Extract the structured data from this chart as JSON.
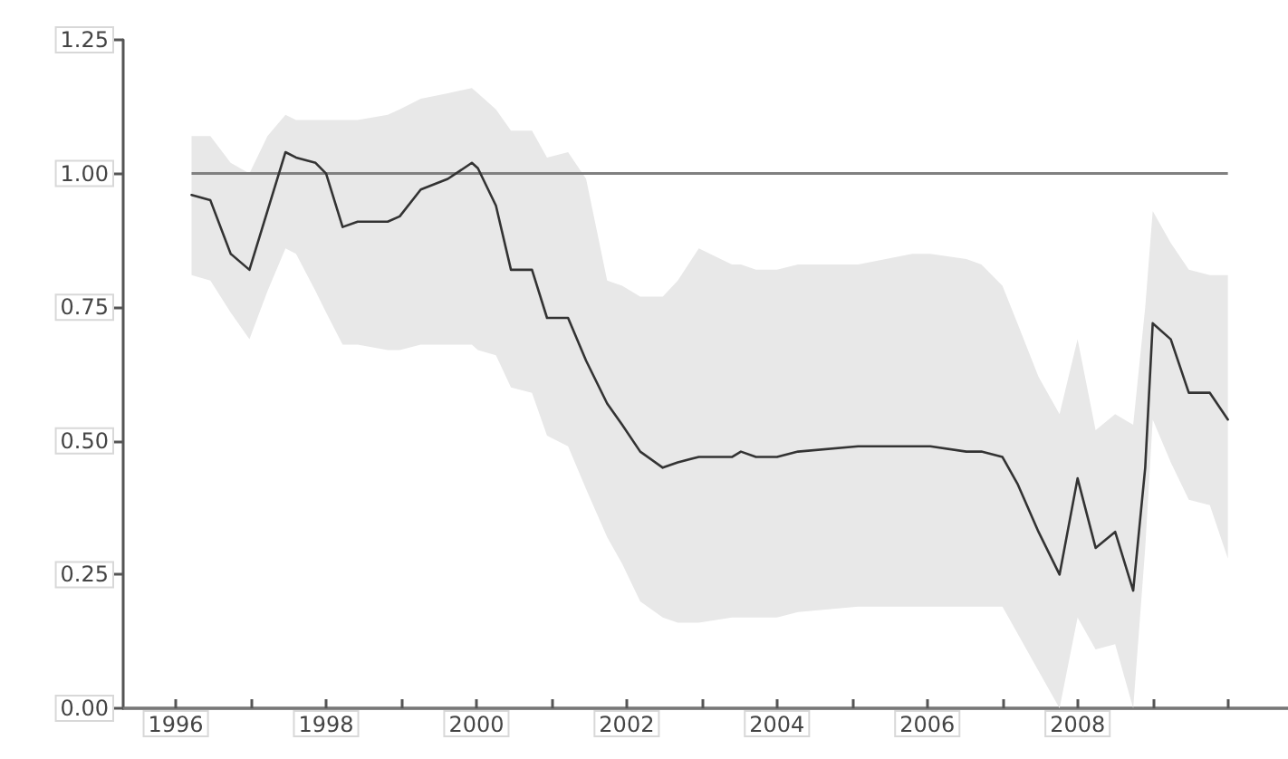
{
  "chart_data": {
    "type": "line",
    "x": [
      1996.21,
      1996.46,
      1996.73,
      1996.98,
      1997.22,
      1997.46,
      1997.6,
      1997.86,
      1998.0,
      1998.22,
      1998.42,
      1998.82,
      1998.98,
      1999.26,
      1999.62,
      1999.94,
      2000.02,
      2000.26,
      2000.46,
      2000.74,
      2000.94,
      2001.22,
      2001.46,
      2001.74,
      2001.94,
      2002.18,
      2002.48,
      2002.68,
      2002.96,
      2003.4,
      2003.52,
      2003.72,
      2004.0,
      2004.28,
      2005.08,
      2005.8,
      2006.04,
      2006.52,
      2006.72,
      2007.0,
      2007.2,
      2007.48,
      2007.76,
      2008.0,
      2008.24,
      2008.5,
      2008.74,
      2008.9,
      2009.0,
      2009.24,
      2009.48,
      2009.76,
      2010.0
    ],
    "series": [
      {
        "color": "#333333",
        "values": [
          0.96,
          0.95,
          0.85,
          0.82,
          0.93,
          1.04,
          1.03,
          1.02,
          1.0,
          0.9,
          0.91,
          0.91,
          0.92,
          0.97,
          0.99,
          1.02,
          1.01,
          0.94,
          0.82,
          0.82,
          0.73,
          0.73,
          0.65,
          0.57,
          0.53,
          0.48,
          0.45,
          0.46,
          0.47,
          0.47,
          0.48,
          0.47,
          0.47,
          0.48,
          0.49,
          0.49,
          0.49,
          0.48,
          0.48,
          0.47,
          0.42,
          0.33,
          0.25,
          0.43,
          0.3,
          0.33,
          0.22,
          0.45,
          0.72,
          0.69,
          0.59,
          0.59,
          0.54
        ],
        "upper": [
          1.07,
          1.07,
          1.02,
          1.0,
          1.07,
          1.11,
          1.1,
          1.1,
          1.1,
          1.1,
          1.1,
          1.11,
          1.12,
          1.14,
          1.15,
          1.16,
          1.15,
          1.12,
          1.08,
          1.08,
          1.03,
          1.04,
          0.99,
          0.8,
          0.79,
          0.77,
          0.77,
          0.8,
          0.86,
          0.83,
          0.83,
          0.82,
          0.82,
          0.83,
          0.83,
          0.85,
          0.85,
          0.84,
          0.83,
          0.79,
          0.72,
          0.62,
          0.55,
          0.69,
          0.52,
          0.55,
          0.53,
          0.75,
          0.93,
          0.87,
          0.82,
          0.81,
          0.81
        ],
        "lower": [
          0.81,
          0.8,
          0.74,
          0.69,
          0.78,
          0.86,
          0.85,
          0.78,
          0.74,
          0.68,
          0.68,
          0.67,
          0.67,
          0.68,
          0.68,
          0.68,
          0.67,
          0.66,
          0.6,
          0.59,
          0.51,
          0.49,
          0.41,
          0.32,
          0.27,
          0.2,
          0.17,
          0.16,
          0.16,
          0.17,
          0.17,
          0.17,
          0.17,
          0.18,
          0.19,
          0.19,
          0.19,
          0.19,
          0.19,
          0.19,
          0.14,
          0.07,
          0.0,
          0.17,
          0.11,
          0.12,
          0.0,
          0.3,
          0.54,
          0.46,
          0.39,
          0.38,
          0.28
        ]
      }
    ],
    "xlim": [
      1995.3,
      2010.8
    ],
    "xticks": [
      1996,
      {
        "value": 1997,
        "label": null
      },
      1998,
      {
        "value": 1999,
        "label": null
      },
      2000,
      {
        "value": 2001,
        "label": null
      },
      2002,
      {
        "value": 2003,
        "label": null
      },
      2004,
      {
        "value": 2005,
        "label": null
      },
      2006,
      {
        "value": 2007,
        "label": null
      },
      2008,
      {
        "value": 2009,
        "label": null
      },
      {
        "value": 2010,
        "label": null
      }
    ],
    "ylim": [
      0,
      1.25
    ],
    "yticks": [
      {
        "value": 0,
        "label": "0.00"
      },
      {
        "value": 0.25,
        "label": "0.25"
      },
      {
        "value": 0.5,
        "label": "0.50"
      },
      {
        "value": 0.75,
        "label": "0.75"
      },
      {
        "value": 1,
        "label": "1.00"
      },
      {
        "value": 1.25,
        "label": "1.25"
      }
    ],
    "ref_lines": [
      {
        "axis": "y",
        "value": 1,
        "color": "#808080"
      }
    ],
    "grid": false,
    "marker": "none",
    "line_style": "solid"
  }
}
